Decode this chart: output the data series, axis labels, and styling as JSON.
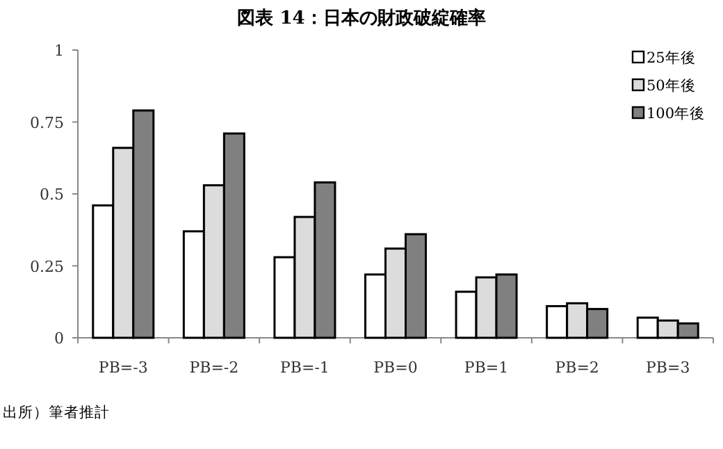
{
  "chart_data": {
    "type": "bar",
    "title": "図表 14：日本の財政破綻確率",
    "categories": [
      "PB=-3",
      "PB=-2",
      "PB=-1",
      "PB=0",
      "PB=1",
      "PB=2",
      "PB=3"
    ],
    "series": [
      {
        "name": "25年後",
        "color": "#ffffff",
        "values": [
          0.46,
          0.37,
          0.28,
          0.22,
          0.16,
          0.11,
          0.07
        ]
      },
      {
        "name": "50年後",
        "color": "#dcdcdc",
        "values": [
          0.66,
          0.53,
          0.42,
          0.31,
          0.21,
          0.12,
          0.06
        ]
      },
      {
        "name": "100年後",
        "color": "#808080",
        "values": [
          0.79,
          0.71,
          0.54,
          0.36,
          0.22,
          0.1,
          0.05
        ]
      }
    ],
    "ylim": [
      0,
      1
    ],
    "yticks": [
      0,
      0.25,
      0.5,
      0.75,
      1
    ],
    "grid": false,
    "legend": "top right",
    "annotations": [
      "出所）筆者推計"
    ]
  }
}
